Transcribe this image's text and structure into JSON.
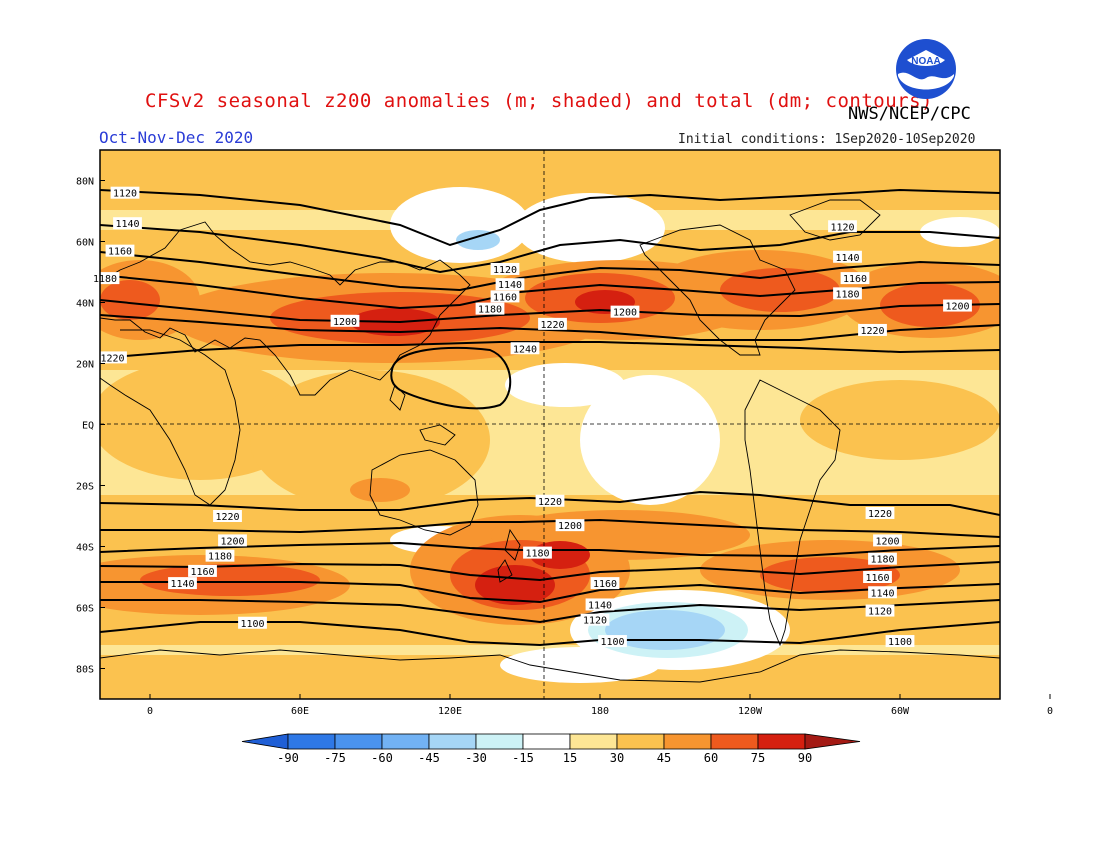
{
  "header": {
    "title": "CFSv2 seasonal z200 anomalies (m; shaded) and total (dm; contours)",
    "agency": "NWS/NCEP/CPC",
    "season": "Oct-Nov-Dec 2020",
    "initial_conditions": "Initial conditions: 1Sep2020-10Sep2020",
    "logo_text": "NOAA"
  },
  "axes": {
    "lat_labels": [
      "80N",
      "60N",
      "40N",
      "20N",
      "EQ",
      "20S",
      "40S",
      "60S",
      "80S"
    ],
    "lon_labels": [
      "0",
      "60E",
      "120E",
      "180",
      "120W",
      "60W",
      "0"
    ]
  },
  "colorbar": {
    "labels": [
      "-90",
      "-75",
      "-60",
      "-45",
      "-30",
      "-15",
      "15",
      "30",
      "45",
      "60",
      "75",
      "90"
    ],
    "colors": [
      "#1f5fd6",
      "#2e78e6",
      "#4a93ee",
      "#72b2f4",
      "#a6d6f6",
      "#cdf2f6",
      "#ffffff",
      "#fde695",
      "#fbc24f",
      "#f79530",
      "#ee5a1e",
      "#d52010",
      "#a41a14"
    ]
  },
  "contour_labels": [
    {
      "text": "1120",
      "lon": -10,
      "lat": 76
    },
    {
      "text": "1140",
      "lon": -9,
      "lat": 66
    },
    {
      "text": "1160",
      "lon": -12,
      "lat": 57
    },
    {
      "text": "1180",
      "lon": -18,
      "lat": 48
    },
    {
      "text": "1220",
      "lon": -15,
      "lat": 22
    },
    {
      "text": "1120",
      "lon": 142,
      "lat": 51
    },
    {
      "text": "1140",
      "lon": 144,
      "lat": 46
    },
    {
      "text": "1160",
      "lon": 142,
      "lat": 42
    },
    {
      "text": "1180",
      "lon": 136,
      "lat": 38
    },
    {
      "text": "1200",
      "lon": 78,
      "lat": 34
    },
    {
      "text": "1220",
      "lon": 161,
      "lat": 33
    },
    {
      "text": "1240",
      "lon": 150,
      "lat": 25
    },
    {
      "text": "1200",
      "lon": 190,
      "lat": 37
    },
    {
      "text": "1120",
      "lon": 277,
      "lat": 65
    },
    {
      "text": "1140",
      "lon": 279,
      "lat": 55
    },
    {
      "text": "1160",
      "lon": 282,
      "lat": 48
    },
    {
      "text": "1180",
      "lon": 279,
      "lat": 43
    },
    {
      "text": "1200",
      "lon": 323,
      "lat": 39
    },
    {
      "text": "1220",
      "lon": 289,
      "lat": 31
    },
    {
      "text": "1220",
      "lon": 160,
      "lat": -25
    },
    {
      "text": "1200",
      "lon": 168,
      "lat": -33
    },
    {
      "text": "1180",
      "lon": 155,
      "lat": -42
    },
    {
      "text": "1220",
      "lon": 31,
      "lat": -30
    },
    {
      "text": "1200",
      "lon": 33,
      "lat": -38
    },
    {
      "text": "1180",
      "lon": 28,
      "lat": -43
    },
    {
      "text": "1160",
      "lon": 21,
      "lat": -48
    },
    {
      "text": "1140",
      "lon": 13,
      "lat": -52
    },
    {
      "text": "1100",
      "lon": 41,
      "lat": -65
    },
    {
      "text": "1160",
      "lon": 182,
      "lat": -52
    },
    {
      "text": "1140",
      "lon": 180,
      "lat": -59
    },
    {
      "text": "1120",
      "lon": 178,
      "lat": -64
    },
    {
      "text": "1100",
      "lon": 185,
      "lat": -71
    },
    {
      "text": "1220",
      "lon": 292,
      "lat": -29
    },
    {
      "text": "1200",
      "lon": 295,
      "lat": -38
    },
    {
      "text": "1180",
      "lon": 293,
      "lat": -44
    },
    {
      "text": "1160",
      "lon": 291,
      "lat": -50
    },
    {
      "text": "1140",
      "lon": 293,
      "lat": -55
    },
    {
      "text": "1120",
      "lon": 292,
      "lat": -61
    },
    {
      "text": "1100",
      "lon": 300,
      "lat": -71
    }
  ]
}
